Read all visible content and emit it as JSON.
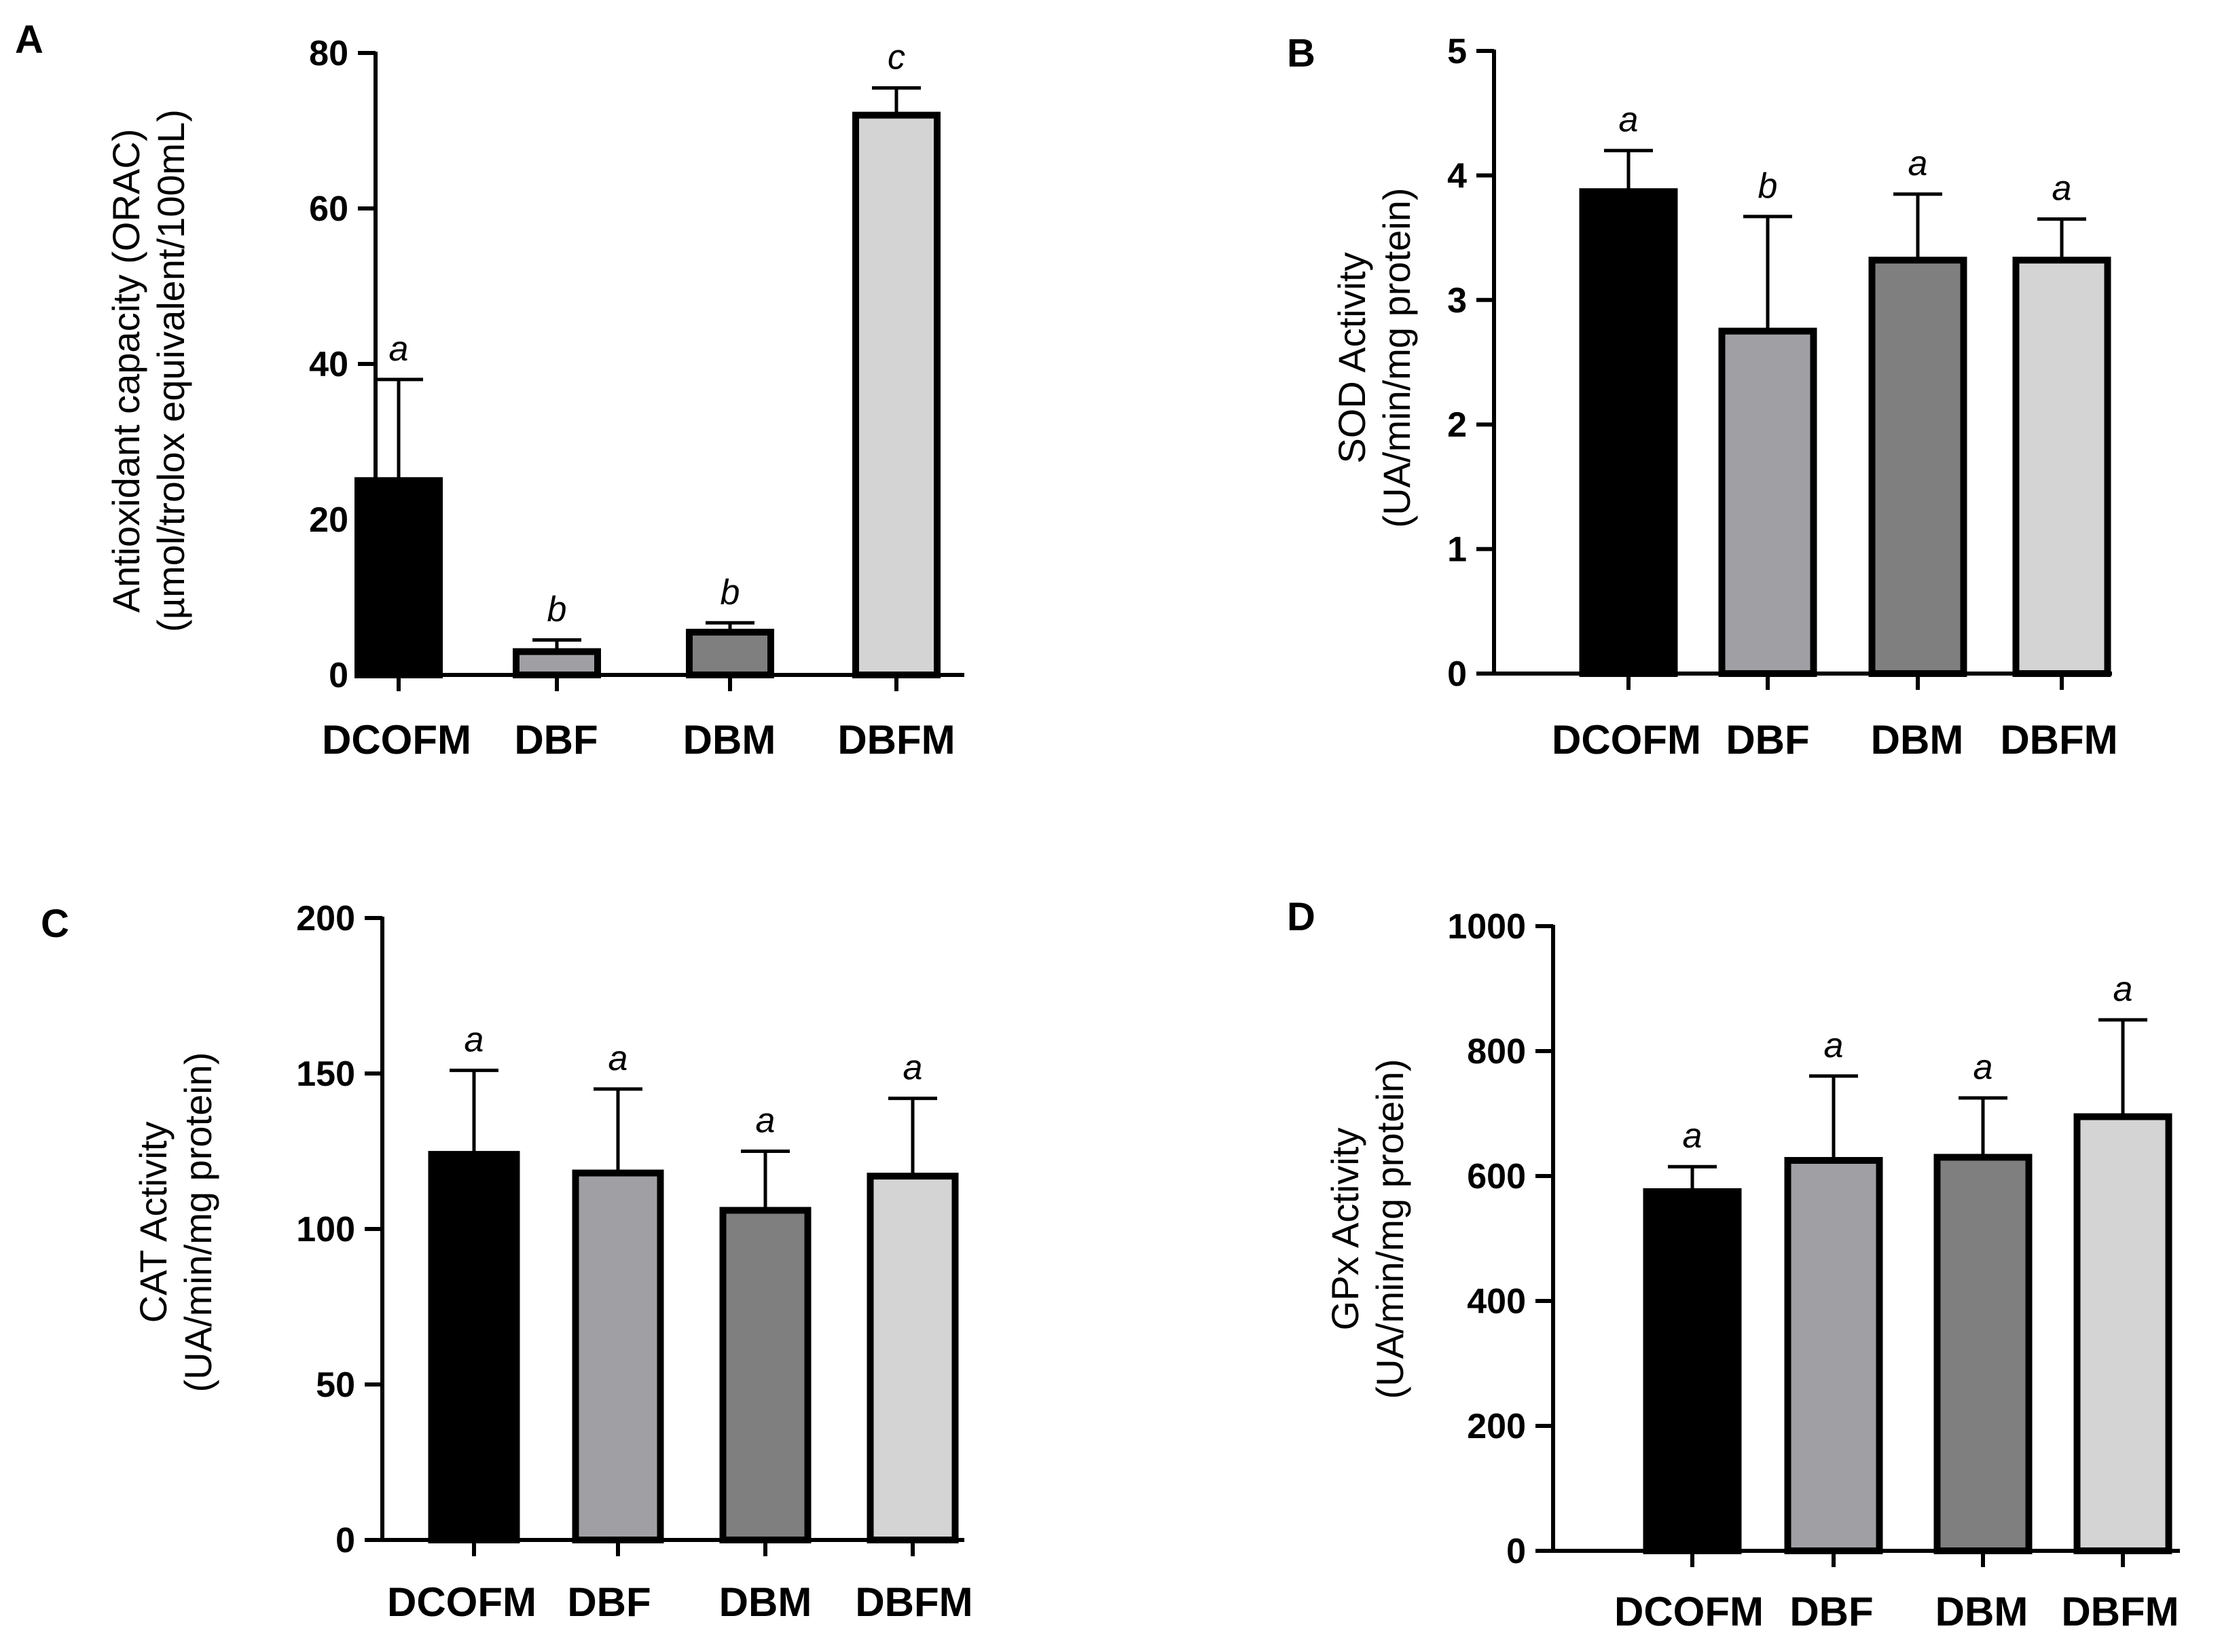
{
  "figure": {
    "panels": [
      {
        "letter": "A",
        "ylabel_line1": "Antioxidant capacity (ORAC)",
        "ylabel_line2": "(µmol/trolox equivalent/100mL)"
      },
      {
        "letter": "B",
        "ylabel_line1": "SOD Activity",
        "ylabel_line2": "(UA/min/mg protein)"
      },
      {
        "letter": "C",
        "ylabel_line1": "CAT Activity",
        "ylabel_line2": "(UA/min/mg protein)"
      },
      {
        "letter": "D",
        "ylabel_line1": "GPx Activity",
        "ylabel_line2": "(UA/min/mg protein)"
      }
    ],
    "bar_colors": [
      "#000000",
      "#a0a0a4",
      "#7f7f7f",
      "#d4d4d4"
    ]
  },
  "chart_data": [
    {
      "type": "bar",
      "panel": "A",
      "title": "",
      "xlabel": "",
      "ylabel": "Antioxidant capacity (ORAC) (µmol/trolox equivalent/100mL)",
      "categories": [
        "DCOFM",
        "DBF",
        "DBM",
        "DBFM"
      ],
      "values": [
        25,
        3,
        5.5,
        72
      ],
      "errors": [
        13,
        1.5,
        1.2,
        3.5
      ],
      "significance": [
        "a",
        "b",
        "b",
        "c"
      ],
      "ylim": [
        0,
        80
      ],
      "yticks": [
        0,
        20,
        40,
        60,
        80
      ]
    },
    {
      "type": "bar",
      "panel": "B",
      "title": "",
      "xlabel": "",
      "ylabel": "SOD Activity (UA/min/mg protein)",
      "categories": [
        "DCOFM",
        "DBF",
        "DBM",
        "DBFM"
      ],
      "values": [
        3.87,
        2.75,
        3.32,
        3.32
      ],
      "errors": [
        0.33,
        0.92,
        0.53,
        0.33
      ],
      "significance": [
        "a",
        "b",
        "a",
        "a"
      ],
      "ylim": [
        0,
        5
      ],
      "yticks": [
        0,
        1,
        2,
        3,
        4,
        5
      ]
    },
    {
      "type": "bar",
      "panel": "C",
      "title": "",
      "xlabel": "",
      "ylabel": "CAT Activity (UA/min/mg protein)",
      "categories": [
        "DCOFM",
        "DBF",
        "DBM",
        "DBFM"
      ],
      "values": [
        124,
        118,
        106,
        117
      ],
      "errors": [
        27,
        27,
        19,
        25
      ],
      "significance": [
        "a",
        "a",
        "a",
        "a"
      ],
      "ylim": [
        0,
        200
      ],
      "yticks": [
        0,
        50,
        100,
        150,
        200
      ]
    },
    {
      "type": "bar",
      "panel": "D",
      "title": "",
      "xlabel": "",
      "ylabel": "GPx Activity (UA/min/mg protein)",
      "categories": [
        "DCOFM",
        "DBF",
        "DBM",
        "DBFM"
      ],
      "values": [
        575,
        625,
        630,
        695
      ],
      "errors": [
        40,
        135,
        95,
        155
      ],
      "significance": [
        "a",
        "a",
        "a",
        "a"
      ],
      "ylim": [
        0,
        1000
      ],
      "yticks": [
        0,
        200,
        400,
        600,
        800,
        1000
      ]
    }
  ]
}
